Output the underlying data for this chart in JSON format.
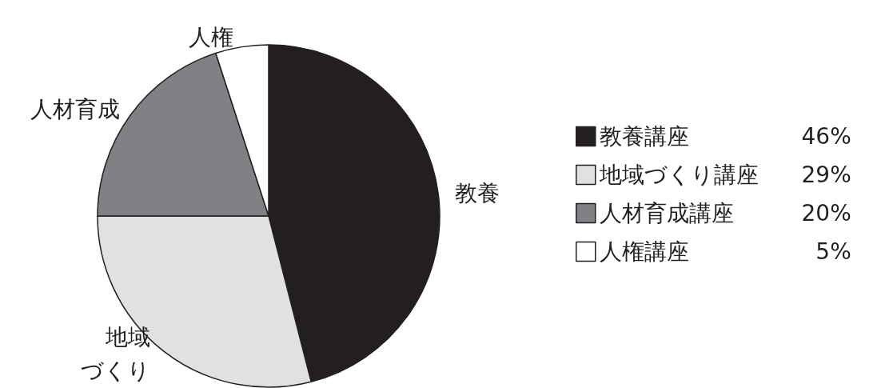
{
  "chart_data": {
    "type": "pie",
    "categories": [
      "教養講座",
      "地域づくり講座",
      "人材育成講座",
      "人権講座"
    ],
    "values": [
      46,
      29,
      20,
      5
    ],
    "colors": [
      "#231f20",
      "#e0e1e2",
      "#808184",
      "#ffffff"
    ],
    "value_labels": [
      "46%",
      "29%",
      "20%",
      "5%"
    ],
    "annotations": [
      "教養",
      "地域づくり",
      "人材育成",
      "人権"
    ],
    "legend": "right"
  }
}
